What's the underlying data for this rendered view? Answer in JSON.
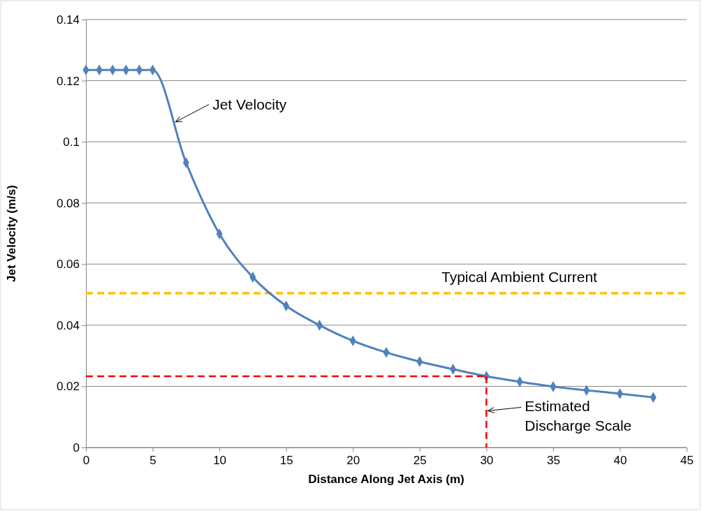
{
  "chart_data": {
    "type": "line",
    "xlabel": "Distance  Along Jet Axis (m)",
    "ylabel": "Jet Velocity (m/s)",
    "xlim": [
      0,
      45
    ],
    "xticks": [
      0,
      5,
      10,
      15,
      20,
      25,
      30,
      35,
      40,
      45
    ],
    "ylim": [
      0,
      0.14
    ],
    "yticks": [
      0,
      0.02,
      0.04,
      0.06,
      0.08,
      0.1,
      0.12,
      0.14
    ],
    "grid": "y",
    "series": [
      {
        "color": "#4f81bd",
        "marker": "diamond",
        "line_style": "solid",
        "x": [
          0,
          1,
          2,
          3,
          4,
          5,
          7.5,
          10,
          12.5,
          15,
          17.5,
          20,
          22.5,
          25,
          27.5,
          30,
          32.5,
          35,
          37.5,
          40,
          42.5
        ],
        "values": [
          0.1235,
          0.1235,
          0.1235,
          0.1235,
          0.1235,
          0.1235,
          0.0932,
          0.0699,
          0.0557,
          0.0463,
          0.04,
          0.0349,
          0.0311,
          0.0281,
          0.0256,
          0.0233,
          0.0215,
          0.0199,
          0.0187,
          0.0176,
          0.0164
        ]
      },
      {
        "color": "#ff0000",
        "marker": "none",
        "line_style": "dashed",
        "x": [
          0,
          30
        ],
        "values": [
          0.0233,
          0.0233
        ]
      },
      {
        "color": "#ff0000",
        "marker": "none",
        "line_style": "dashed",
        "x": [
          30,
          30
        ],
        "values": [
          0.0233,
          0
        ]
      }
    ],
    "ref_lines": [
      {
        "axis": "y",
        "value": 0.0505,
        "label": "Typical Ambient Current",
        "color": "#ffc000",
        "line_style": "dashed"
      }
    ],
    "annotations": [
      {
        "text": "Jet Velocity",
        "x": 6.6,
        "y": 0.1065
      },
      {
        "text": "Estimated Discharge Scale",
        "x": 30,
        "y": 0.012
      }
    ]
  }
}
